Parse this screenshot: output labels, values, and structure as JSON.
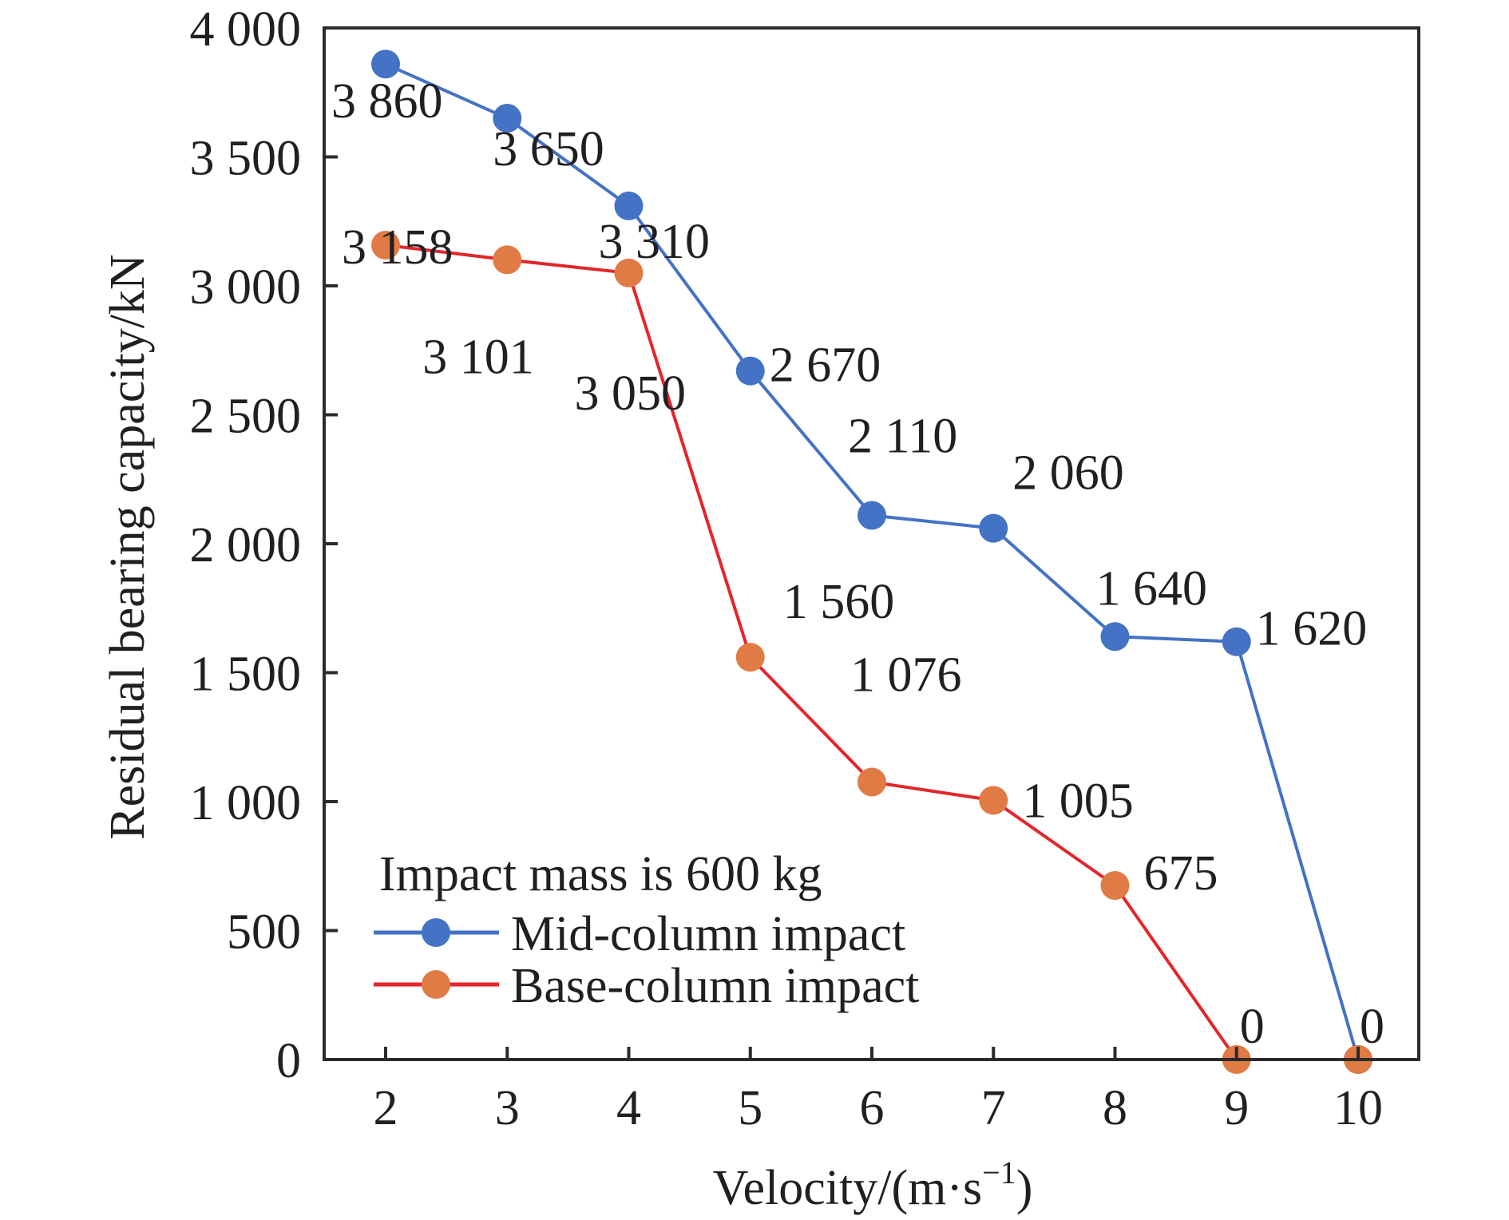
{
  "chart_data": {
    "type": "line",
    "title": "",
    "xlabel": "Velocity/(m·s",
    "xlabel_sup": "−1",
    "xlabel_close": ")",
    "ylabel": "Residual bearing capacity/kN",
    "x": [
      2,
      3,
      4,
      5,
      6,
      7,
      8,
      9,
      10
    ],
    "xlim": [
      1.5,
      10.5
    ],
    "ylim": [
      0,
      4000
    ],
    "x_ticks": [
      "2",
      "3",
      "4",
      "5",
      "6",
      "7",
      "8",
      "9",
      "10"
    ],
    "y_ticks": [
      {
        "value": 0,
        "label": "0"
      },
      {
        "value": 500,
        "label": "500"
      },
      {
        "value": 1000,
        "label": "1 000"
      },
      {
        "value": 1500,
        "label": "1 500"
      },
      {
        "value": 2000,
        "label": "2 000"
      },
      {
        "value": 2500,
        "label": "2 500"
      },
      {
        "value": 3000,
        "label": "3 000"
      },
      {
        "value": 3500,
        "label": "3 500"
      },
      {
        "value": 4000,
        "label": "4 000"
      }
    ],
    "grid": false,
    "legend": {
      "title": "Impact mass is 600 kg",
      "placement": "bottom-left"
    },
    "series": [
      {
        "name": "Mid-column impact",
        "line_color": "#4472C4",
        "marker_color": "#4472C4",
        "values": [
          3860,
          3650,
          3310,
          2670,
          2110,
          2060,
          1640,
          1620,
          0
        ],
        "labels": [
          "3 860",
          "3 650",
          "3 310",
          "2 670",
          "2 110",
          "2 060",
          "1 640",
          "1 620",
          "0"
        ]
      },
      {
        "name": "Base-column impact",
        "line_color": "#E3262B",
        "marker_color": "#E07B45",
        "values": [
          3158,
          3101,
          3050,
          1560,
          1076,
          1005,
          675,
          0,
          0
        ],
        "labels": [
          "3 158",
          "3 101",
          "3 050",
          "1 560",
          "1 076",
          "1 005",
          "675",
          "0",
          null
        ]
      }
    ]
  }
}
